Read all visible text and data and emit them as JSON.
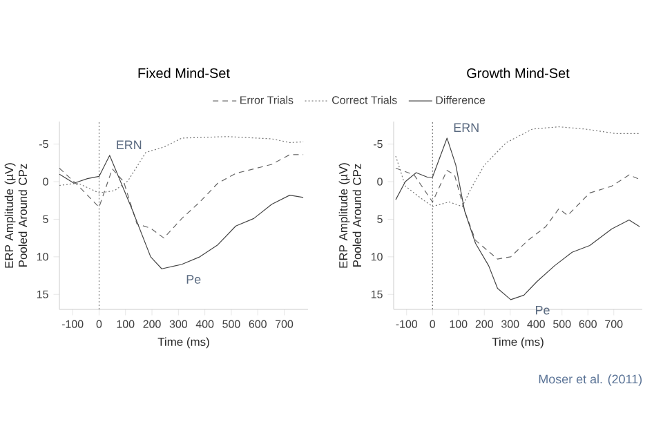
{
  "chart_data": [
    {
      "type": "line",
      "title": "Fixed Mind-Set",
      "xlabel": "Time (ms)",
      "ylabel": "ERP Amplitude (µV) Pooled Around CPz",
      "xlim": [
        -150,
        790
      ],
      "ylim": [
        17,
        -8
      ],
      "xticks": [
        -100,
        0,
        100,
        200,
        300,
        400,
        500,
        600,
        700
      ],
      "yticks": [
        -5,
        0,
        5,
        10,
        15
      ],
      "grid": false,
      "legend": "top",
      "ref_lines": [
        {
          "axis": "x",
          "value": 0,
          "line_style": "dotted",
          "color": "#555555"
        }
      ],
      "annotations": [
        {
          "text": "ERN",
          "x": 40,
          "y": -3.5
        },
        {
          "text": "Pe",
          "x": 237,
          "y": 11.6
        }
      ],
      "series": [
        {
          "name": "Error Trials",
          "color": "#666666",
          "line_style": "dashed",
          "x": [
            -150,
            -80,
            0,
            50,
            93,
            143,
            195,
            245,
            313,
            381,
            449,
            517,
            585,
            653,
            721,
            772
          ],
          "values": [
            -1.8,
            0.5,
            3.4,
            -1.7,
            0,
            5.6,
            6.2,
            7.5,
            4.9,
            2.7,
            0.2,
            -1.1,
            -1.7,
            -2.3,
            -3.6,
            -3.6
          ]
        },
        {
          "name": "Correct Trials",
          "color": "#777777",
          "line_style": "dotted",
          "x": [
            -150,
            -80,
            0,
            58,
            109,
            177,
            245,
            313,
            483,
            653,
            721,
            772
          ],
          "values": [
            0.5,
            0.2,
            1.5,
            1.2,
            -0.1,
            -3.9,
            -4.6,
            -5.8,
            -6,
            -5.7,
            -5.2,
            -5.3
          ]
        },
        {
          "name": "Difference",
          "color": "#444444",
          "line_style": "solid",
          "x": [
            -150,
            -95,
            -44,
            0,
            40,
            125,
            195,
            237,
            313,
            381,
            449,
            517,
            585,
            653,
            721,
            772
          ],
          "values": [
            -1,
            0.2,
            -0.4,
            -0.7,
            -3.5,
            3.7,
            10,
            11.6,
            11,
            10,
            8.4,
            5.9,
            4.9,
            3,
            1.8,
            2.1
          ]
        }
      ]
    },
    {
      "type": "line",
      "title": "Growth Mind-Set",
      "xlabel": "Time (ms)",
      "ylabel": "ERP Amplitude (µV) Pooled Around CPz",
      "xlim": [
        -150,
        810
      ],
      "ylim": [
        17,
        -8
      ],
      "xticks": [
        -100,
        0,
        100,
        200,
        300,
        400,
        500,
        600,
        700
      ],
      "yticks": [
        -5,
        0,
        5,
        10,
        15
      ],
      "grid": false,
      "ref_lines": [
        {
          "axis": "x",
          "value": 0,
          "line_style": "dotted",
          "color": "#555555"
        }
      ],
      "annotations": [
        {
          "text": "ERN",
          "x": 56,
          "y": -5.8
        },
        {
          "text": "Pe",
          "x": 302,
          "y": 15.7
        },
        "Moser et al. (2011)"
      ],
      "series": [
        {
          "color": "#666666",
          "line_style": "dashed",
          "x": [
            -142,
            -71,
            0,
            56,
            85,
            124,
            166,
            251,
            302,
            369,
            437,
            488,
            522,
            607,
            692,
            759,
            800
          ],
          "values": [
            -1.8,
            -0.9,
            2.7,
            -1.5,
            -0.9,
            3.9,
            7.8,
            10.3,
            10,
            7.8,
            6,
            3.6,
            4.5,
            1.5,
            0.6,
            -0.9,
            -0.3
          ]
        },
        {
          "color": "#777777",
          "line_style": "dotted",
          "x": [
            -142,
            -105,
            -37,
            0,
            64,
            115,
            149,
            200,
            285,
            386,
            488,
            590,
            708,
            800
          ],
          "values": [
            -3.4,
            0.6,
            2.4,
            3.3,
            2.7,
            3.3,
            0.9,
            -2.2,
            -5.2,
            -7,
            -7.3,
            -7,
            -6.4,
            -6.4
          ]
        },
        {
          "color": "#444444",
          "line_style": "solid",
          "x": [
            -142,
            -105,
            -63,
            -20,
            0,
            56,
            90,
            124,
            166,
            217,
            251,
            302,
            353,
            403,
            471,
            539,
            607,
            692,
            759,
            800
          ],
          "values": [
            2.4,
            0,
            -1.2,
            -0.6,
            -0.6,
            -5.8,
            -2.2,
            3.9,
            8.2,
            11.2,
            14.2,
            15.7,
            15.1,
            13.3,
            11.2,
            9.4,
            8.5,
            6.3,
            5.1,
            6
          ]
        }
      ]
    }
  ]
}
